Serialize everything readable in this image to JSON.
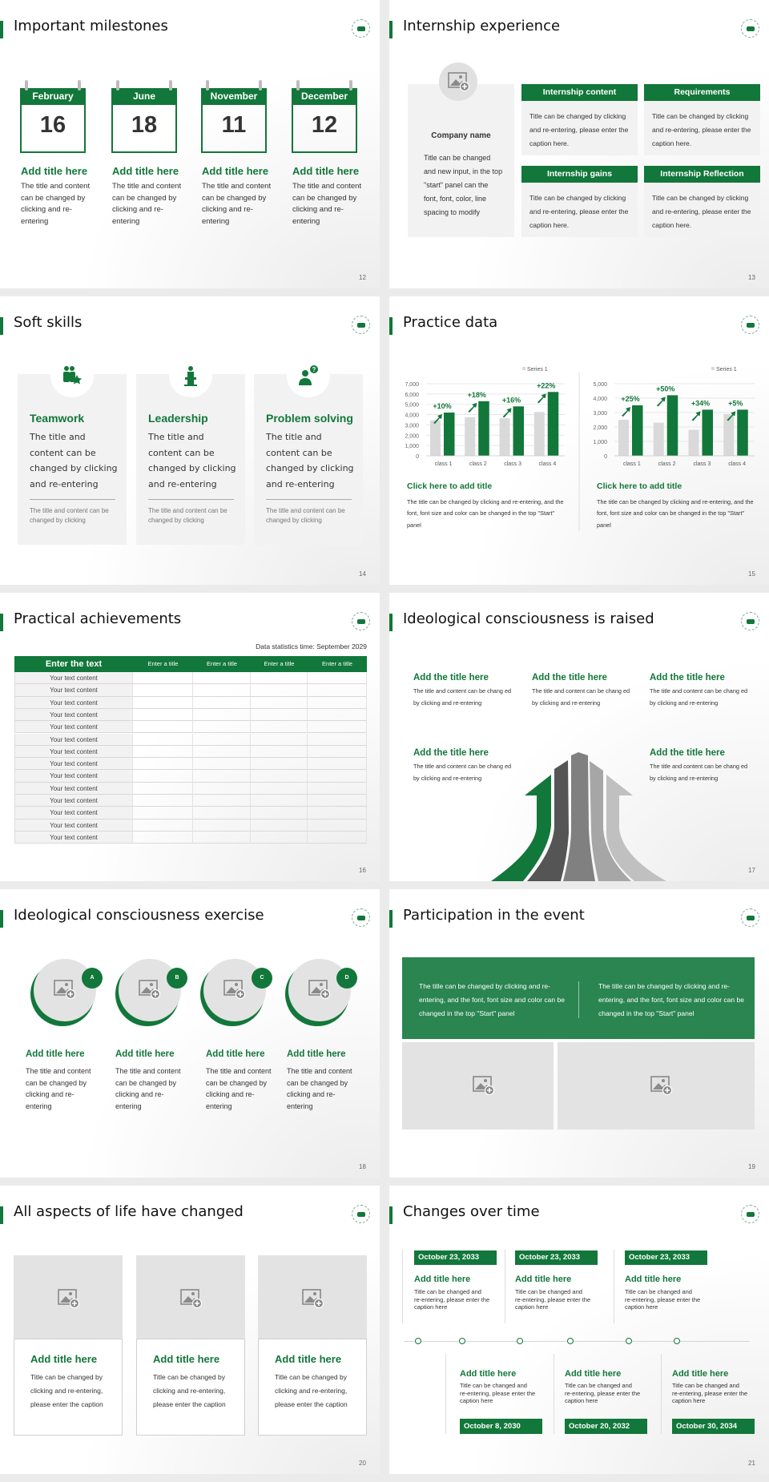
{
  "theme": {
    "accent": "#12773a",
    "banner": "#2a8551",
    "light_grey": "#f2f2f2",
    "placeholder_grey": "#e3e3e3"
  },
  "slides": [
    {
      "number": "12",
      "title": "Important milestones",
      "calendars": [
        {
          "month": "February",
          "day": "16",
          "title": "Add title here",
          "body": "The title and content can be changed by clicking and re-entering"
        },
        {
          "month": "June",
          "day": "18",
          "title": "Add title here",
          "body": "The title and content can be changed by clicking and re-entering"
        },
        {
          "month": "November",
          "day": "11",
          "title": "Add title here",
          "body": "The title and content can be changed by clicking and re-entering"
        },
        {
          "month": "December",
          "day": "12",
          "title": "Add title here",
          "body": "The title and content can be changed by clicking and re-entering"
        }
      ]
    },
    {
      "number": "13",
      "title": "Internship experience",
      "company": {
        "name": "Company name",
        "body": "Title can be changed and new input, in the top \"start\" panel can the font, font, color, line spacing to modify"
      },
      "cards": [
        {
          "header": "Internship content",
          "body": "Title can be changed by clicking and re-entering, please enter the caption here."
        },
        {
          "header": "Requirements",
          "body": "Title can be changed by clicking and re-entering, please enter the caption here."
        },
        {
          "header": "Internship gains",
          "body": "Title can be changed by clicking and re-entering, please enter the caption here."
        },
        {
          "header": "Internship Reflection",
          "body": "Title can be changed by clicking and re-entering, please enter the caption here."
        }
      ]
    },
    {
      "number": "14",
      "title": "Soft skills",
      "cards": [
        {
          "icon": "teamwork-icon",
          "title": "Teamwork",
          "body": "The title and content can be changed by clicking and re-entering",
          "note": "The title and content can be changed by clicking"
        },
        {
          "icon": "leadership-podium-icon",
          "title": "Leadership",
          "body": "The title and content can be changed by clicking and re-entering",
          "note": "The title and content can be changed by clicking"
        },
        {
          "icon": "question-person-icon",
          "title": "Problem solving",
          "body": "The title and content can be changed by clicking and re-entering",
          "note": "The title and content can be changed by clicking"
        }
      ]
    },
    {
      "number": "15",
      "title": "Practice data",
      "captions": [
        {
          "title": "Click here to add title",
          "body": "The title can be changed by clicking and re-entering, and the font, font size and color can be changed in the top \"Start\" panel"
        },
        {
          "title": "Click here to add title",
          "body": "The title can be changed by clicking and re-entering, and the font, font size and color can be changed in the top \"Start\" panel"
        }
      ]
    },
    {
      "number": "16",
      "title": "Practical achievements",
      "stat_time": "Data statistics time: September 2029",
      "headers": [
        "Enter the text",
        "Enter a title",
        "Enter a title",
        "Enter a title",
        "Enter a title"
      ],
      "rows": [
        "Your text content",
        "Your text content",
        "Your text content",
        "Your text content",
        "Your text content",
        "Your text content",
        "Your text content",
        "Your text content",
        "Your text content",
        "Your text content",
        "Your text content",
        "Your text content",
        "Your text content",
        "Your text content"
      ]
    },
    {
      "number": "17",
      "title": "Ideological consciousness is raised",
      "items": [
        {
          "title": "Add the title here",
          "body": "The title and content can be chang ed by clicking and re-entering"
        },
        {
          "title": "Add the title here",
          "body": "The title and content can be chang ed by clicking and re-entering"
        },
        {
          "title": "Add the title here",
          "body": "The title and content can be chang ed by clicking and re-entering"
        },
        {
          "title": "Add the title here",
          "body": "The title and content can be chang ed by clicking and re-entering"
        },
        {
          "title": "Add the title here",
          "body": "The title and content can be chang ed by clicking and re-entering"
        }
      ]
    },
    {
      "number": "18",
      "title": "Ideological consciousness exercise",
      "items": [
        {
          "badge": "A",
          "title": "Add title here",
          "body": "The title and content can be changed by clicking and re-entering"
        },
        {
          "badge": "B",
          "title": "Add title here",
          "body": "The title and content can be changed by clicking and re-entering"
        },
        {
          "badge": "C",
          "title": "Add title here",
          "body": "The title and content can be changed by clicking and re-entering"
        },
        {
          "badge": "D",
          "title": "Add title here",
          "body": "The title and content can be changed by clicking and re-entering"
        }
      ]
    },
    {
      "number": "19",
      "title": "Participation in the event",
      "banner": [
        "The title can be changed by clicking and re-entering, and the font, font size and color can be changed in the top \"Start\" panel",
        "The title can be changed by clicking and re-entering, and the font, font size and color can be changed in the top \"Start\" panel"
      ]
    },
    {
      "number": "20",
      "title": "All aspects of life have changed",
      "cards": [
        {
          "title": "Add title here",
          "body": "Title can be changed by clicking and re-entering, please enter the caption"
        },
        {
          "title": "Add title here",
          "body": "Title can be changed by clicking and re-entering, please enter the caption"
        },
        {
          "title": "Add title here",
          "body": "Title can be changed by clicking and re-entering, please enter the caption"
        }
      ]
    },
    {
      "number": "21",
      "title": "Changes over time",
      "top": [
        {
          "date": "October 23, 2033",
          "title": "Add title here",
          "body": "Title can be changed and re-entering, please enter the caption here"
        },
        {
          "date": "October 23, 2033",
          "title": "Add title here",
          "body": "Title can be changed and re-entering, please enter the caption here"
        },
        {
          "date": "October 23, 2033",
          "title": "Add title here",
          "body": "Title can be changed and re-entering, please enter the caption here"
        }
      ],
      "bottom": [
        {
          "date": "October 8, 2030",
          "title": "Add title here",
          "body": "Title can be changed and re-entering, please enter the caption here"
        },
        {
          "date": "October 20, 2032",
          "title": "Add title here",
          "body": "Title can be changed and re-entering, please enter the caption here"
        },
        {
          "date": "October 30, 2034",
          "title": "Add title here",
          "body": "Title can be changed and re-entering, please enter the caption here"
        }
      ]
    }
  ],
  "chart_data": [
    {
      "type": "bar",
      "categories": [
        "class 1",
        "class 2",
        "class 3",
        "class 4"
      ],
      "series": [
        {
          "name": "Series 1",
          "values": [
            3450,
            3750,
            3650,
            4250
          ],
          "color": "#d9d9d9"
        },
        {
          "values": [
            4200,
            5300,
            4800,
            6200
          ],
          "color": "#12773a"
        }
      ],
      "annotations": [
        "+10%",
        "+18%",
        "+16%",
        "+22%"
      ],
      "ylim": [
        0,
        7000
      ],
      "yticks": [
        "0",
        "1,000",
        "2,000",
        "3,000",
        "4,000",
        "5,000",
        "6,000",
        "7,000"
      ],
      "grid": true,
      "legend": "top-right"
    },
    {
      "type": "bar",
      "categories": [
        "class 1",
        "class 2",
        "class 3",
        "class 4"
      ],
      "series": [
        {
          "name": "Series 1",
          "values": [
            2500,
            2300,
            1800,
            2900
          ],
          "color": "#d9d9d9"
        },
        {
          "values": [
            3500,
            4200,
            3200,
            3200
          ],
          "color": "#12773a"
        }
      ],
      "annotations": [
        "+25%",
        "+50%",
        "+34%",
        "+5%"
      ],
      "ylim": [
        0,
        5000
      ],
      "yticks": [
        "0",
        "1,000",
        "2,000",
        "3,000",
        "4,000",
        "5,000"
      ],
      "grid": true,
      "legend": "top-right"
    }
  ]
}
